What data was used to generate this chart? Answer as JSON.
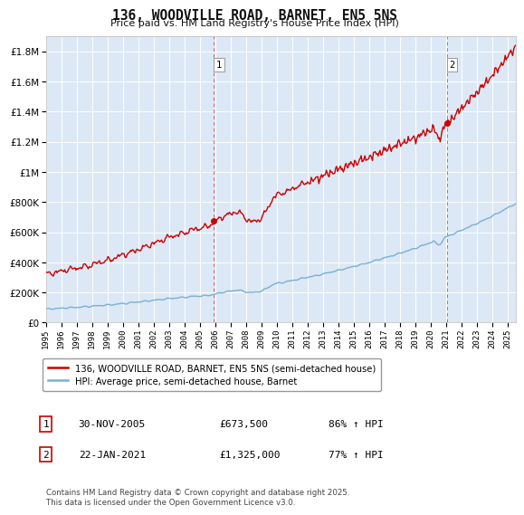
{
  "title": "136, WOODVILLE ROAD, BARNET, EN5 5NS",
  "subtitle": "Price paid vs. HM Land Registry's House Price Index (HPI)",
  "legend_line1": "136, WOODVILLE ROAD, BARNET, EN5 5NS (semi-detached house)",
  "legend_line2": "HPI: Average price, semi-detached house, Barnet",
  "footnote": "Contains HM Land Registry data © Crown copyright and database right 2025.\nThis data is licensed under the Open Government Licence v3.0.",
  "sale1_label": "1",
  "sale1_date": "30-NOV-2005",
  "sale1_price": "£673,500",
  "sale1_hpi": "86% ↑ HPI",
  "sale2_label": "2",
  "sale2_date": "22-JAN-2021",
  "sale2_price": "£1,325,000",
  "sale2_hpi": "77% ↑ HPI",
  "sale1_year": 2005.92,
  "sale1_value": 673500,
  "sale2_year": 2021.06,
  "sale2_value": 1325000,
  "ylim_max": 1900000,
  "ylim_min": 0,
  "xlim_min": 1995.0,
  "xlim_max": 2025.5,
  "line_color_red": "#cc0000",
  "line_color_blue": "#7aafd4",
  "bg_color": "#dce8f5",
  "grid_color": "#ffffff",
  "dashed_line_color": "#e06060"
}
